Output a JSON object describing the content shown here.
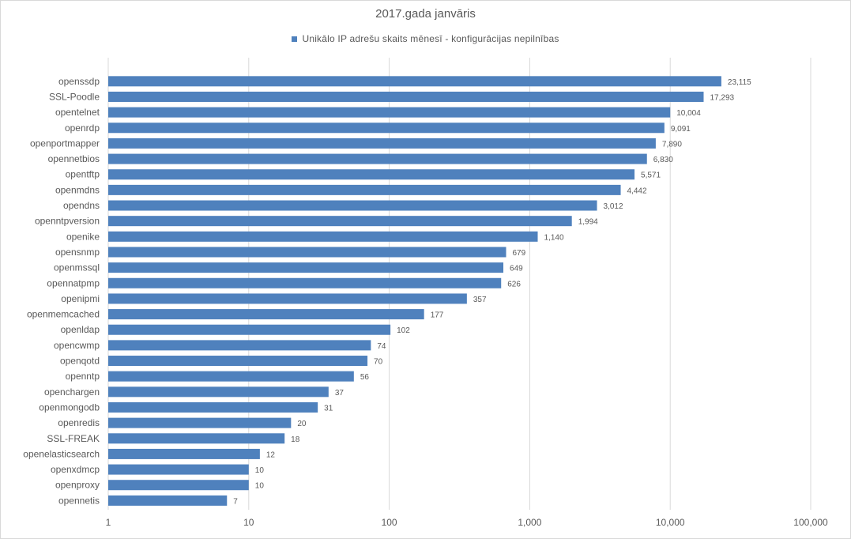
{
  "chart_data": {
    "type": "bar",
    "orientation": "horizontal",
    "title": "2017.gada janvāris",
    "x_scale": "log",
    "xlim": [
      1,
      100000
    ],
    "x_ticks": [
      "1",
      "10",
      "100",
      "1,000",
      "10,000",
      "100,000"
    ],
    "x_tick_values": [
      1,
      10,
      100,
      1000,
      10000,
      100000
    ],
    "grid": "vertical",
    "legend_position": "top",
    "series": [
      {
        "name": "Unikālo IP adrešu skaits mēnesī  -  konfigurācijas nepilnības",
        "color": "#4f81bd"
      }
    ],
    "categories": [
      "openssdp",
      "SSL-Poodle",
      "opentelnet",
      "openrdp",
      "openportmapper",
      "opennetbios",
      "opentftp",
      "openmdns",
      "opendns",
      "openntpversion",
      "openike",
      "opensnmp",
      "openmssql",
      "opennatpmp",
      "openipmi",
      "openmemcached",
      "openldap",
      "opencwmp",
      "openqotd",
      "openntp",
      "openchargen",
      "openmongodb",
      "openredis",
      "SSL-FREAK",
      "openelasticsearch",
      "openxdmcp",
      "openproxy",
      "opennetis"
    ],
    "values": [
      23115,
      17293,
      10004,
      9091,
      7890,
      6830,
      5571,
      4442,
      3012,
      1994,
      1140,
      679,
      649,
      626,
      357,
      177,
      102,
      74,
      70,
      56,
      37,
      31,
      20,
      18,
      12,
      10,
      10,
      7
    ],
    "value_labels": [
      "23,115",
      "17,293",
      "10,004",
      "9,091",
      "7,890",
      "6,830",
      "5,571",
      "4,442",
      "3,012",
      "1,994",
      "1,140",
      "679",
      "649",
      "626",
      "357",
      "177",
      "102",
      "74",
      "70",
      "56",
      "37",
      "31",
      "20",
      "18",
      "12",
      "10",
      "10",
      "7"
    ]
  }
}
